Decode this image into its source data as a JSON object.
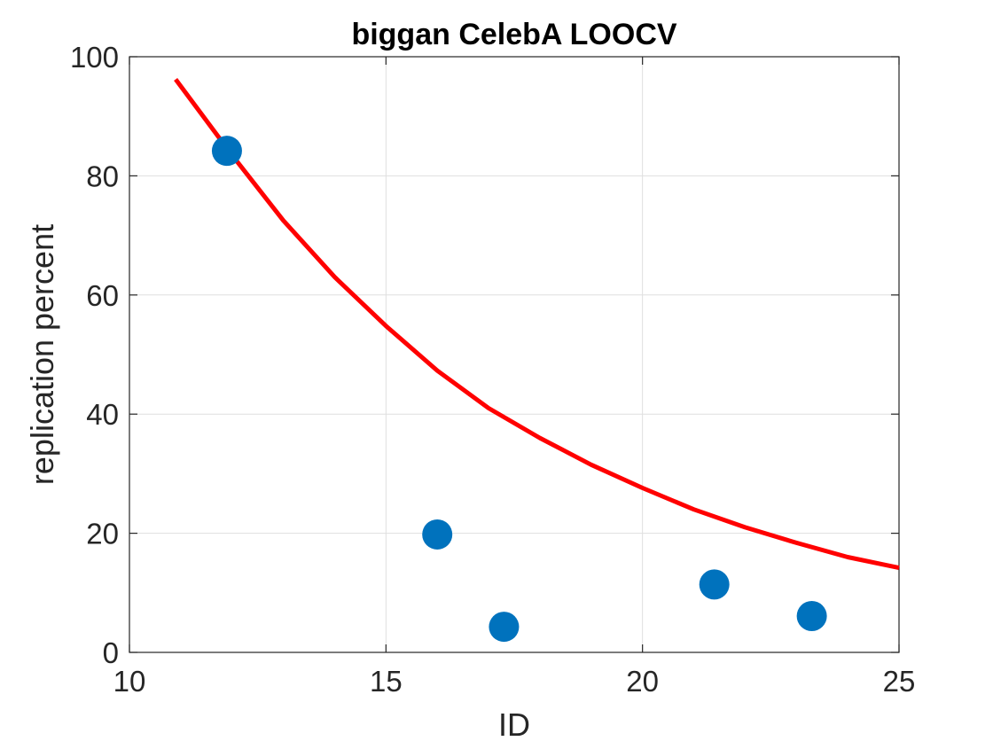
{
  "chart_data": {
    "type": "scatter",
    "title": "biggan CelebA LOOCV",
    "xlabel": "ID",
    "ylabel": "replication percent",
    "xlim": [
      10,
      25
    ],
    "ylim": [
      0,
      100
    ],
    "xticks": [
      10,
      15,
      20,
      25
    ],
    "yticks": [
      0,
      20,
      40,
      60,
      80,
      100
    ],
    "grid": true,
    "legend": "none",
    "points": {
      "x": [
        11.9,
        16.0,
        17.3,
        21.4,
        23.3
      ],
      "y": [
        84.2,
        19.8,
        4.3,
        11.4,
        6.1
      ],
      "color": "#0072BD"
    },
    "fit_curve": {
      "form": "exponential decay",
      "x": [
        10.9,
        12,
        13,
        14,
        15,
        16,
        17,
        18,
        19,
        20,
        21,
        22,
        23,
        24,
        25
      ],
      "y": [
        96.2,
        83.5,
        72.5,
        63.0,
        54.8,
        47.3,
        41.0,
        36.0,
        31.5,
        27.6,
        24.0,
        21.0,
        18.4,
        16.0,
        14.2
      ],
      "color": "#FF0000"
    }
  }
}
